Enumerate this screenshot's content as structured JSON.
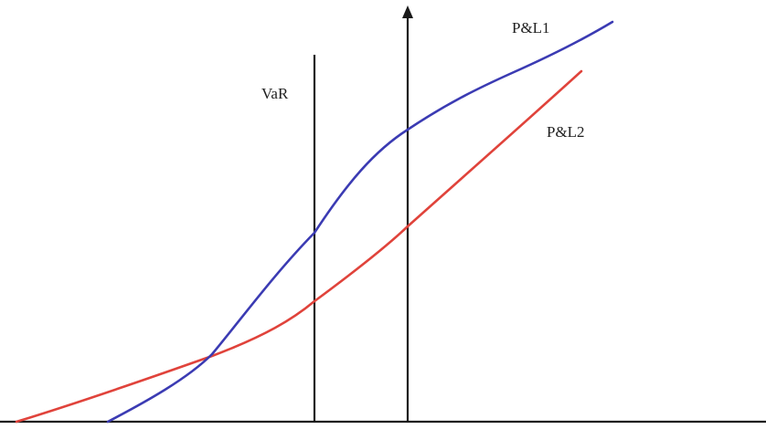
{
  "figure": {
    "labels": {
      "var": "VaR",
      "pl1": "P&L1",
      "pl2": "P&L2"
    },
    "colors": {
      "pl1": "#3b3bb3",
      "pl2": "#e0433b",
      "axis": "#1a1a1a"
    }
  }
}
